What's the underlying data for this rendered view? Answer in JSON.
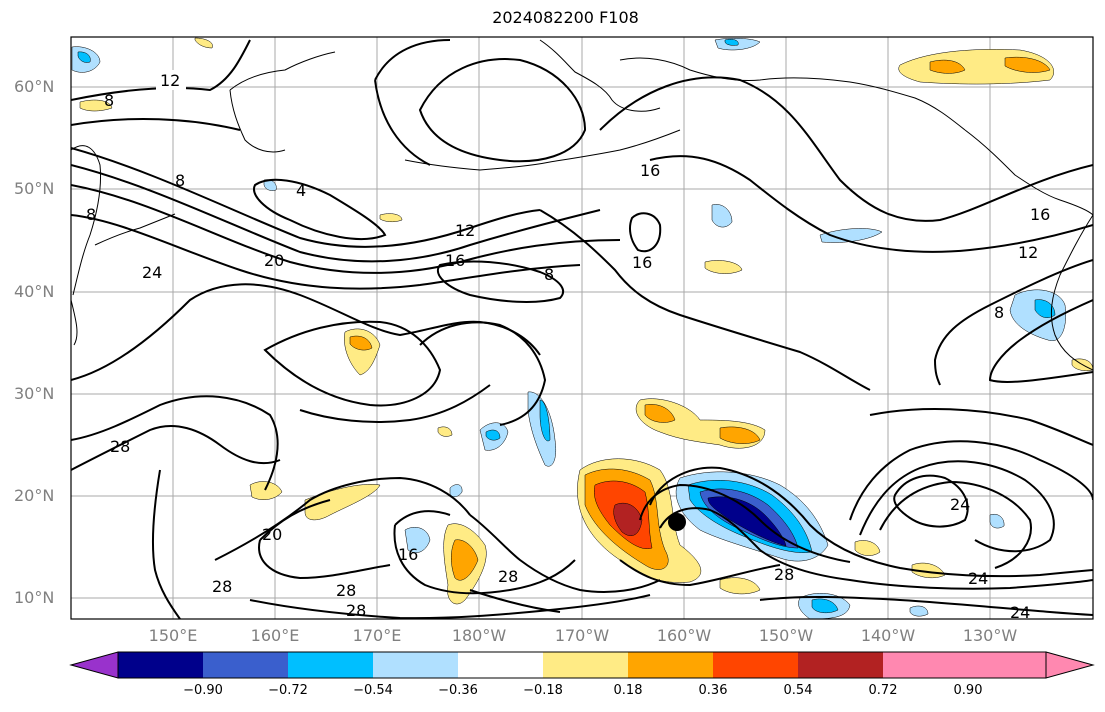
{
  "title": "2024082200 F108",
  "lat_labels": [
    "60°N",
    "50°N",
    "40°N",
    "30°N",
    "20°N",
    "10°N"
  ],
  "lon_labels": [
    "150°E",
    "160°E",
    "170°E",
    "180°W",
    "170°W",
    "160°W",
    "150°W",
    "140°W",
    "130°W"
  ],
  "contour_labels": [
    "12",
    "8",
    "8",
    "8",
    "4",
    "12",
    "16",
    "8",
    "16",
    "16",
    "12",
    "8",
    "16",
    "20",
    "24",
    "28",
    "20",
    "16",
    "28",
    "28",
    "28",
    "28",
    "24",
    "28",
    "24",
    "24"
  ],
  "colorbar": {
    "ticks": [
      "−0.90",
      "−0.72",
      "−0.54",
      "−0.36",
      "−0.18",
      "0.18",
      "0.36",
      "0.54",
      "0.72",
      "0.90"
    ],
    "colors": [
      "#9932cc",
      "#00008b",
      "#3a5fcd",
      "#00bfff",
      "#b0e0ff",
      "#ffffff",
      "#ffeb85",
      "#ffa500",
      "#ff4500",
      "#b22222",
      "#ff88b0"
    ]
  },
  "storm_marker": "black-dot"
}
